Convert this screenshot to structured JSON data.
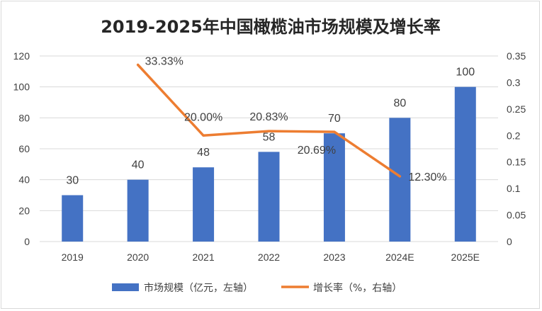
{
  "chart_data": {
    "type": "bar+line",
    "title": "2019-2025年中国橄榄油市场规模及增长率",
    "categories": [
      "2019",
      "2020",
      "2021",
      "2022",
      "2023",
      "2024E",
      "2025E"
    ],
    "series": [
      {
        "name": "市场规模（亿元，左轴）",
        "type": "bar",
        "axis": "left",
        "color": "#4472C4",
        "values": [
          30,
          40,
          48,
          58,
          70,
          80,
          100
        ],
        "labels": [
          "30",
          "40",
          "48",
          "58",
          "70",
          "80",
          "100"
        ]
      },
      {
        "name": "增长率（%，右轴）",
        "type": "line",
        "axis": "right",
        "color": "#ED7D31",
        "values": [
          null,
          0.3333,
          0.2,
          0.2083,
          0.2069,
          0.123,
          null
        ],
        "labels": [
          "",
          "33.33%",
          "20.00%",
          "20.83%",
          "20.69%",
          "12.30%",
          ""
        ]
      }
    ],
    "y_left": {
      "min": 0,
      "max": 120,
      "ticks": [
        "0",
        "20",
        "40",
        "60",
        "80",
        "100",
        "120"
      ]
    },
    "y_right": {
      "min": 0,
      "max": 0.35,
      "ticks": [
        "0",
        "0.05",
        "0.1",
        "0.15",
        "0.2",
        "0.25",
        "0.3",
        "0.35"
      ]
    },
    "grid": true,
    "legend_position": "bottom"
  }
}
